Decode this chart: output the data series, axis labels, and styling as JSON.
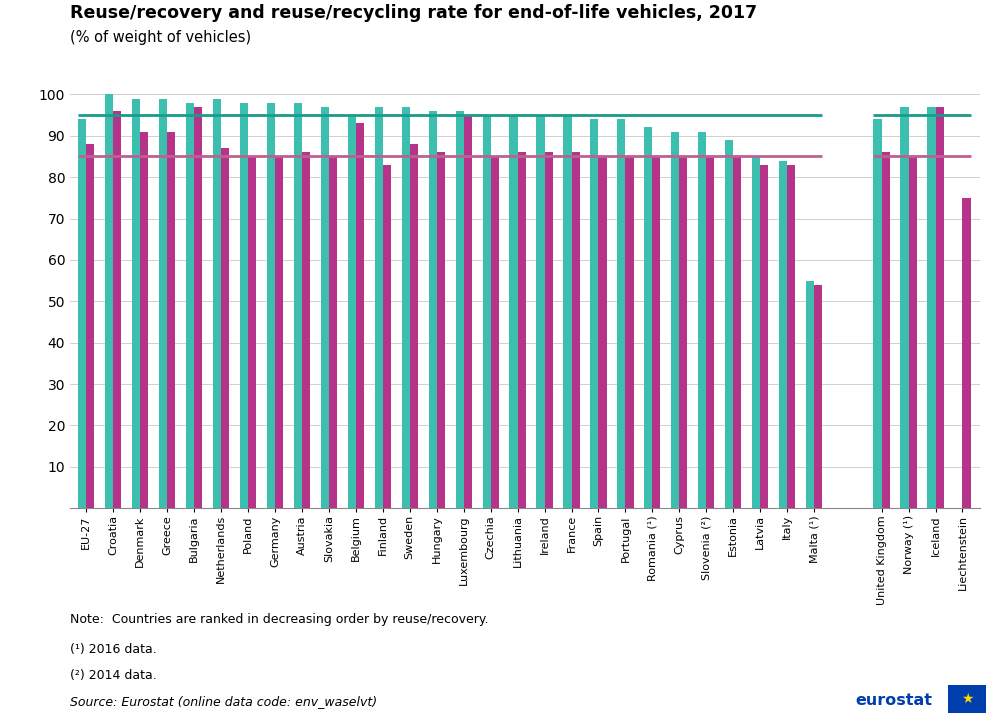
{
  "title": "Reuse/recovery and reuse/recycling rate for end-of-life vehicles, 2017",
  "subtitle": "(% of weight of vehicles)",
  "categories_eu": [
    "EU-27",
    "Croatia",
    "Denmark",
    "Greece",
    "Bulgaria",
    "Netherlands",
    "Poland",
    "Germany",
    "Austria",
    "Slovakia",
    "Belgium",
    "Finland",
    "Sweden",
    "Hungary",
    "Luxembourg",
    "Czechia",
    "Lithuania",
    "Ireland",
    "France",
    "Spain",
    "Portugal",
    "Romania (¹)",
    "Cyprus",
    "Slovenia (²)",
    "Estonia",
    "Latvia",
    "Italy",
    "Malta (¹)"
  ],
  "categories_noeu": [
    "United Kingdom",
    "Norway (¹)",
    "Iceland",
    "Liechtenstein"
  ],
  "recovery_eu": [
    94,
    100,
    99,
    99,
    98,
    99,
    98,
    98,
    98,
    97,
    95,
    97,
    97,
    96,
    96,
    95,
    95,
    95,
    95,
    94,
    94,
    92,
    91,
    91,
    89,
    85,
    84,
    55
  ],
  "recycling_eu": [
    88,
    96,
    91,
    91,
    97,
    87,
    85,
    85,
    86,
    85,
    93,
    83,
    88,
    86,
    95,
    85,
    86,
    86,
    86,
    85,
    85,
    85,
    85,
    85,
    85,
    83,
    83,
    54
  ],
  "recovery_noeu": [
    94,
    97,
    97,
    null
  ],
  "recycling_noeu": [
    86,
    85,
    97,
    75
  ],
  "recovery_target": 95,
  "recycling_target": 85,
  "color_recovery": "#3DBFB0",
  "color_recycling": "#B5348A",
  "color_recovery_target": "#1A9B8C",
  "color_recycling_target": "#C06090",
  "ylim": [
    0,
    100
  ],
  "yticks": [
    0,
    10,
    20,
    30,
    40,
    50,
    60,
    70,
    80,
    90,
    100
  ],
  "figsize": [
    10.0,
    7.26
  ],
  "dpi": 100,
  "note1": "Note:  Countries are ranked in decreasing order by reuse/recovery.",
  "note2": "(¹) 2016 data.",
  "note3": "(²) 2014 data.",
  "note4": "Source: Eurostat (online data code: env_waselvt)"
}
